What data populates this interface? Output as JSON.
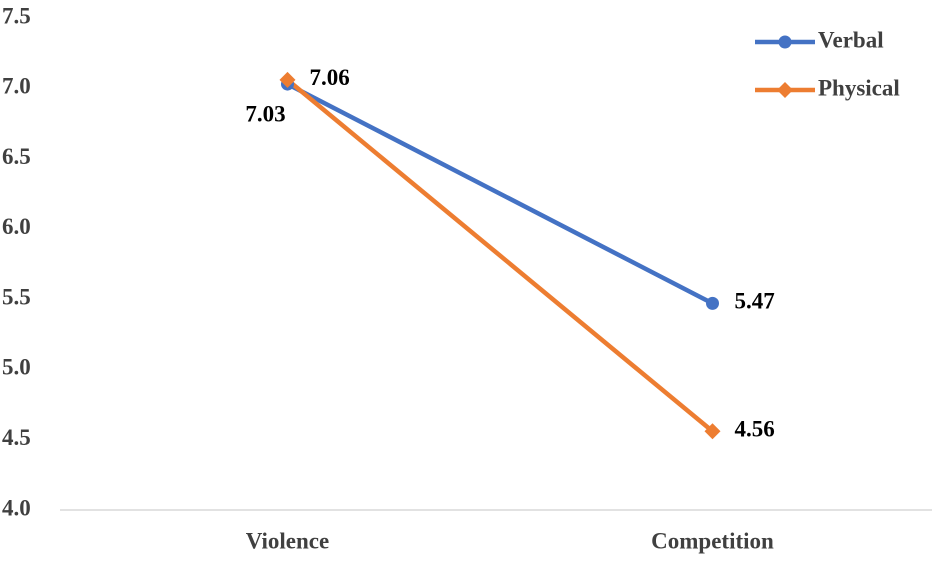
{
  "chart_data": {
    "type": "line",
    "categories": [
      "Violence",
      "Competition"
    ],
    "series": [
      {
        "name": "Verbal",
        "color": "#4472c4",
        "marker": "circle",
        "values": [
          7.03,
          5.47
        ]
      },
      {
        "name": "Physical",
        "color": "#ed7d31",
        "marker": "diamond",
        "values": [
          7.06,
          4.56
        ]
      }
    ],
    "ylim": [
      4,
      7.5
    ],
    "yticks": [
      {
        "value": 4,
        "label": "4.0"
      },
      4.5,
      {
        "value": 5,
        "label": "5.0"
      },
      5.5,
      {
        "value": 6,
        "label": "6.0"
      },
      6.5,
      {
        "value": 7,
        "label": "7.0"
      },
      7.5
    ],
    "grid": false,
    "legend": "upper right"
  }
}
